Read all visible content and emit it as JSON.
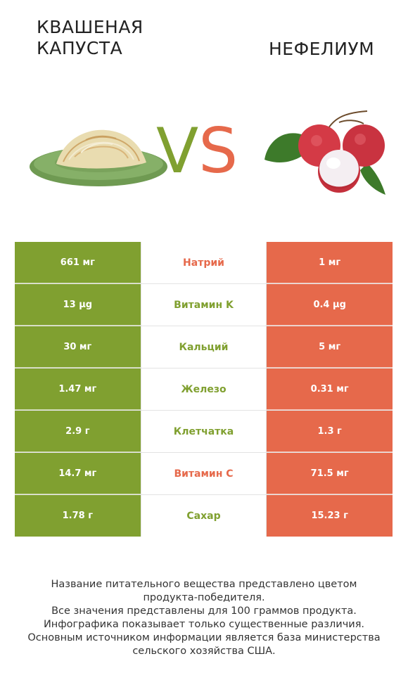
{
  "header": {
    "left_title_lines": [
      "КВАШЕНАЯ",
      "КАПУСТА"
    ],
    "right_title": "НЕФЕЛИУМ",
    "vs_v": "V",
    "vs_s": "S"
  },
  "colors": {
    "left_product": "#80a030",
    "right_product": "#e6694b"
  },
  "images": {
    "left": "sauerkraut-plate-image",
    "right": "lychee-fruit-image"
  },
  "rows": [
    {
      "left": "661 мг",
      "nutrient": "Натрий",
      "right": "1 мг",
      "winner": "right"
    },
    {
      "left": "13 µg",
      "nutrient": "Витамин K",
      "right": "0.4 µg",
      "winner": "left"
    },
    {
      "left": "30 мг",
      "nutrient": "Кальций",
      "right": "5 мг",
      "winner": "left"
    },
    {
      "left": "1.47 мг",
      "nutrient": "Железо",
      "right": "0.31 мг",
      "winner": "left"
    },
    {
      "left": "2.9 г",
      "nutrient": "Клетчатка",
      "right": "1.3 г",
      "winner": "left"
    },
    {
      "left": "14.7 мг",
      "nutrient": "Витамин C",
      "right": "71.5 мг",
      "winner": "right"
    },
    {
      "left": "1.78 г",
      "nutrient": "Сахар",
      "right": "15.23 г",
      "winner": "left"
    }
  ],
  "footer": {
    "lines": [
      "Название питательного вещества представлено цветом",
      "продукта-победителя.",
      "Все значения представлены для 100 граммов продукта.",
      "Инфографика показывает только существенные различия.",
      "Основным источником информации является база министерства",
      "сельского хозяйства США."
    ]
  }
}
